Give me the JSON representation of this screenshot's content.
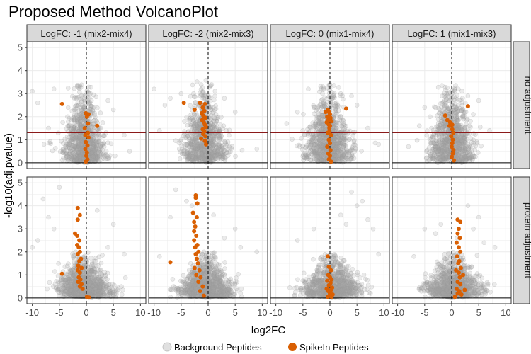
{
  "chart_data": {
    "type": "scatter",
    "title": "Proposed Method VolcanoPlot",
    "xlabel": "log2FC",
    "ylabel": "-log10(adj.pvalue)",
    "xlim": [
      -11,
      11
    ],
    "ylim": [
      -0.25,
      5.25
    ],
    "x_ticks": [
      "-10",
      "-5",
      "0",
      "5",
      "10"
    ],
    "x_tick_values": [
      -10,
      -5,
      0,
      5,
      10
    ],
    "y_ticks": [
      "0",
      "1",
      "2",
      "3",
      "4",
      "5"
    ],
    "y_tick_values": [
      0,
      1,
      2,
      3,
      4,
      5
    ],
    "grid": true,
    "significance_threshold": 1.3,
    "columns": [
      "LogFC: -1 (mix2-mix4)",
      "LogFC: -2 (mix2-mix3)",
      "LogFC: 0 (mix1-mix4)",
      "LogFC: 1 (mix1-mix3)"
    ],
    "rows": [
      "no adjustment",
      "protein adjustment"
    ],
    "legend": {
      "position": "bottom",
      "entries": [
        {
          "name": "Background Peptides",
          "color": "#a6a6a6"
        },
        {
          "name": "SpikeIn Peptides",
          "color": "#d95f02"
        }
      ]
    },
    "background_shape": [
      [
        {
          "center": -0.6,
          "sd": 1.8,
          "maxY": 3.0,
          "outliers": [
            [
              -10,
              3.1
            ],
            [
              -9,
              2.6
            ],
            [
              -6,
              3.2
            ],
            [
              -7,
              1.5
            ],
            [
              5,
              2.3
            ],
            [
              7,
              1.2
            ],
            [
              4,
              2.7
            ],
            [
              8,
              0.5
            ]
          ]
        },
        {
          "center": -0.6,
          "sd": 1.8,
          "maxY": 3.2,
          "outliers": [
            [
              -10,
              3.2
            ],
            [
              -8,
              2.5
            ],
            [
              -7,
              2.8
            ],
            [
              -5,
              3.0
            ],
            [
              3,
              2.8
            ],
            [
              5,
              2.2
            ],
            [
              9,
              0.6
            ],
            [
              -9,
              1.4
            ]
          ]
        },
        {
          "center": -0.2,
          "sd": 2.0,
          "maxY": 3.0,
          "outliers": [
            [
              -8,
              1.7
            ],
            [
              -6,
              2.2
            ],
            [
              4,
              2.9
            ],
            [
              5,
              2.5
            ],
            [
              9,
              0.8
            ],
            [
              -4,
              3.2
            ],
            [
              2,
              3.0
            ],
            [
              7,
              1.5
            ]
          ]
        },
        {
          "center": -0.1,
          "sd": 1.9,
          "maxY": 3.0,
          "outliers": [
            [
              -4,
              2.0
            ],
            [
              -5,
              2.4
            ],
            [
              3,
              2.9
            ],
            [
              5,
              2.7
            ],
            [
              -8,
              0.7
            ],
            [
              7,
              1.4
            ],
            [
              -6,
              1.6
            ],
            [
              4,
              2.1
            ]
          ]
        }
      ],
      [
        {
          "center": -0.4,
          "sd": 2.4,
          "maxY": 1.6,
          "outliers": [
            [
              -8,
              4.3
            ],
            [
              -7,
              3.5
            ],
            [
              -5,
              4.8
            ],
            [
              -6,
              3.0
            ],
            [
              2,
              3.8
            ],
            [
              5,
              3.2
            ],
            [
              4,
              2.2
            ],
            [
              -9,
              2.5
            ],
            [
              7,
              1.9
            ],
            [
              -10,
              2.2
            ]
          ]
        },
        {
          "center": -0.3,
          "sd": 2.3,
          "maxY": 1.6,
          "outliers": [
            [
              -6,
              4.7
            ],
            [
              -4,
              4.2
            ],
            [
              -7,
              3.5
            ],
            [
              1,
              3.6
            ],
            [
              3,
              2.6
            ],
            [
              6,
              2.2
            ],
            [
              -9,
              1.8
            ],
            [
              9,
              2.0
            ],
            [
              -3,
              4.0
            ],
            [
              5,
              3.0
            ]
          ]
        },
        {
          "center": 0.4,
          "sd": 2.6,
          "maxY": 1.5,
          "outliers": [
            [
              4,
              4.6
            ],
            [
              5,
              4.0
            ],
            [
              6,
              4.2
            ],
            [
              3,
              3.2
            ],
            [
              8,
              3.0
            ],
            [
              -3,
              3.0
            ],
            [
              -6,
              2.5
            ],
            [
              9,
              1.9
            ],
            [
              2,
              3.6
            ],
            [
              7,
              3.4
            ]
          ]
        },
        {
          "center": 0.3,
          "sd": 2.3,
          "maxY": 1.6,
          "outliers": [
            [
              3,
              4.0
            ],
            [
              5,
              3.5
            ],
            [
              -5,
              3.0
            ],
            [
              -3,
              2.8
            ],
            [
              6,
              2.4
            ],
            [
              8,
              2.2
            ],
            [
              -7,
              1.8
            ],
            [
              1,
              2.6
            ],
            [
              -2,
              3.2
            ],
            [
              4,
              3.0
            ]
          ]
        }
      ]
    ],
    "spikein": [
      [
        [
          [
            -4.5,
            2.55
          ],
          [
            -0.1,
            2.15
          ],
          [
            0.1,
            2.0
          ],
          [
            0.3,
            1.7
          ],
          [
            -0.3,
            1.5
          ],
          [
            0.3,
            1.3
          ],
          [
            -0.2,
            1.2
          ],
          [
            0.4,
            1.1
          ],
          [
            -0.1,
            0.9
          ],
          [
            0.2,
            0.75
          ],
          [
            -0.2,
            0.6
          ],
          [
            0.1,
            0.45
          ],
          [
            0.0,
            0.3
          ],
          [
            0.2,
            0.15
          ],
          [
            -0.1,
            0.05
          ],
          [
            2.0,
            1.6
          ],
          [
            0.4,
            2.1
          ]
        ],
        [
          [
            -4.5,
            2.6
          ],
          [
            -1.5,
            2.6
          ],
          [
            -0.6,
            2.55
          ],
          [
            -1.0,
            2.4
          ],
          [
            -0.7,
            2.25
          ],
          [
            -1.2,
            2.15
          ],
          [
            -0.9,
            2.05
          ],
          [
            -0.5,
            1.95
          ],
          [
            -1.1,
            1.85
          ],
          [
            -0.8,
            1.75
          ],
          [
            -0.6,
            1.65
          ],
          [
            -0.4,
            1.55
          ],
          [
            -1.0,
            1.45
          ],
          [
            -0.7,
            1.35
          ],
          [
            -0.9,
            1.25
          ],
          [
            -0.5,
            1.15
          ],
          [
            -0.6,
            0.95
          ],
          [
            -0.4,
            0.8
          ],
          [
            -1.3,
            1.05
          ],
          [
            -2.5,
            2.3
          ]
        ],
        [
          [
            -0.4,
            2.3
          ],
          [
            -0.2,
            2.2
          ],
          [
            0.0,
            2.1
          ],
          [
            -0.5,
            2.0
          ],
          [
            0.1,
            1.95
          ],
          [
            -0.3,
            1.85
          ],
          [
            -0.6,
            1.75
          ],
          [
            -0.2,
            1.65
          ],
          [
            3.0,
            2.35
          ],
          [
            -0.1,
            1.5
          ],
          [
            -0.4,
            1.3
          ],
          [
            0.2,
            1.2
          ],
          [
            -0.2,
            1.0
          ],
          [
            0.0,
            0.85
          ],
          [
            -0.5,
            0.7
          ],
          [
            0.1,
            0.55
          ],
          [
            -0.3,
            0.4
          ],
          [
            0.0,
            0.3
          ],
          [
            -0.2,
            0.15
          ],
          [
            0.2,
            0.05
          ],
          [
            -0.1,
            1.35
          ],
          [
            -0.8,
            2.2
          ],
          [
            0.3,
            1.8
          ],
          [
            0.0,
            1.6
          ]
        ],
        [
          [
            -1.2,
            2.05
          ],
          [
            -0.8,
            1.85
          ],
          [
            -0.3,
            1.75
          ],
          [
            -0.4,
            1.6
          ],
          [
            0.1,
            1.45
          ],
          [
            0.3,
            1.3
          ],
          [
            -0.1,
            1.15
          ],
          [
            0.2,
            1.0
          ],
          [
            0.1,
            0.85
          ],
          [
            0.0,
            0.7
          ],
          [
            0.3,
            0.55
          ],
          [
            0.2,
            0.4
          ],
          [
            0.0,
            0.25
          ],
          [
            0.4,
            0.1
          ],
          [
            3.0,
            2.45
          ],
          [
            0.1,
            1.65
          ]
        ]
      ],
      [
        [
          [
            -1.6,
            3.9
          ],
          [
            -1.2,
            3.6
          ],
          [
            -1.6,
            3.4
          ],
          [
            -2.1,
            2.8
          ],
          [
            -1.7,
            2.7
          ],
          [
            -1.3,
            2.5
          ],
          [
            -1.7,
            2.3
          ],
          [
            -1.4,
            2.2
          ],
          [
            -1.2,
            2.0
          ],
          [
            -1.6,
            1.9
          ],
          [
            -1.0,
            1.7
          ],
          [
            -1.3,
            1.6
          ],
          [
            -1.5,
            1.4
          ],
          [
            -0.9,
            1.3
          ],
          [
            -1.6,
            1.2
          ],
          [
            -1.2,
            1.1
          ],
          [
            -4.5,
            1.05
          ],
          [
            -1.4,
            0.9
          ],
          [
            -1.1,
            0.8
          ],
          [
            -1.5,
            0.7
          ],
          [
            -0.9,
            0.6
          ],
          [
            -1.2,
            0.5
          ],
          [
            -0.7,
            0.4
          ],
          [
            0.1,
            0.05
          ],
          [
            0.5,
            0.02
          ]
        ],
        [
          [
            -2.3,
            4.45
          ],
          [
            -2.3,
            4.35
          ],
          [
            -2.0,
            4.1
          ],
          [
            -2.8,
            3.7
          ],
          [
            -2.1,
            3.5
          ],
          [
            -2.6,
            3.3
          ],
          [
            -2.4,
            3.1
          ],
          [
            -2.6,
            2.9
          ],
          [
            -2.2,
            2.7
          ],
          [
            -2.6,
            2.5
          ],
          [
            -2.0,
            2.3
          ],
          [
            -2.4,
            2.2
          ],
          [
            -1.8,
            2.0
          ],
          [
            -2.3,
            1.9
          ],
          [
            -2.1,
            1.7
          ],
          [
            -1.9,
            1.5
          ],
          [
            -2.5,
            1.3
          ],
          [
            -1.6,
            1.2
          ],
          [
            -2.2,
            1.0
          ],
          [
            -1.4,
            0.9
          ],
          [
            -1.8,
            0.7
          ],
          [
            -1.0,
            0.5
          ],
          [
            -1.5,
            0.3
          ],
          [
            -0.8,
            0.1
          ],
          [
            -7.0,
            1.55
          ]
        ],
        [
          [
            -0.4,
            1.8
          ],
          [
            -0.2,
            1.35
          ],
          [
            0.2,
            1.2
          ],
          [
            -0.3,
            1.0
          ],
          [
            0.0,
            0.9
          ],
          [
            0.3,
            0.8
          ],
          [
            -0.5,
            0.75
          ],
          [
            0.1,
            0.65
          ],
          [
            -0.2,
            0.55
          ],
          [
            0.4,
            0.45
          ],
          [
            -0.6,
            0.4
          ],
          [
            0.2,
            0.35
          ],
          [
            -0.3,
            0.3
          ],
          [
            0.0,
            0.2
          ],
          [
            0.5,
            0.15
          ],
          [
            -0.1,
            0.1
          ],
          [
            0.3,
            0.05
          ],
          [
            -0.4,
            0.05
          ]
        ],
        [
          [
            1.1,
            3.4
          ],
          [
            1.6,
            3.3
          ],
          [
            1.3,
            3.0
          ],
          [
            1.1,
            2.8
          ],
          [
            1.5,
            2.6
          ],
          [
            0.9,
            2.4
          ],
          [
            1.3,
            2.2
          ],
          [
            1.6,
            2.0
          ],
          [
            1.0,
            1.8
          ],
          [
            1.4,
            1.6
          ],
          [
            1.2,
            1.5
          ],
          [
            1.7,
            1.3
          ],
          [
            0.8,
            1.2
          ],
          [
            1.3,
            1.1
          ],
          [
            1.5,
            0.9
          ],
          [
            2.1,
            1.0
          ],
          [
            1.1,
            0.7
          ],
          [
            1.6,
            0.6
          ],
          [
            0.9,
            0.4
          ],
          [
            1.4,
            0.3
          ],
          [
            2.4,
            0.35
          ],
          [
            1.1,
            0.2
          ],
          [
            1.8,
            0.15
          ],
          [
            0.6,
            0.05
          ]
        ]
      ]
    ]
  }
}
